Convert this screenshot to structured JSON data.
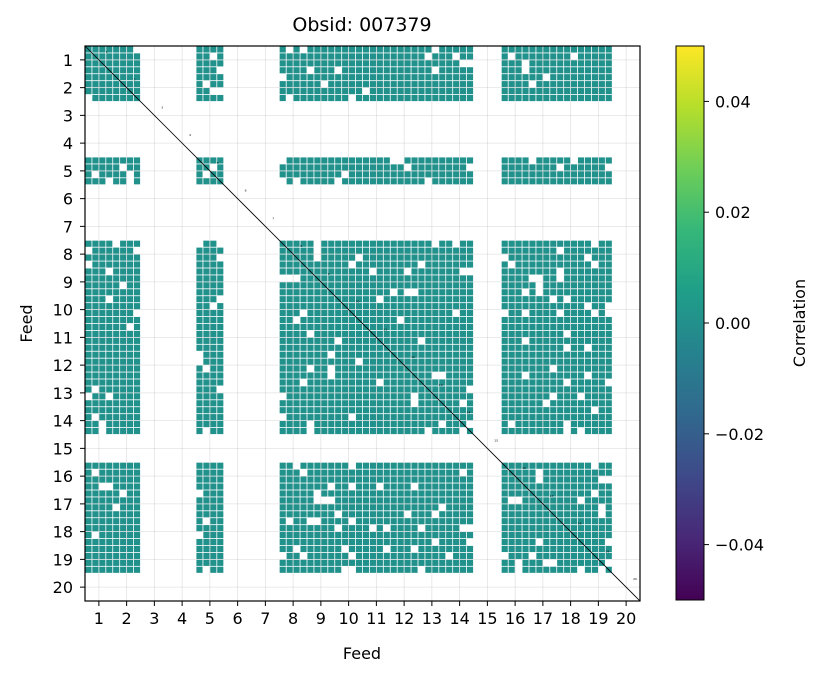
{
  "chart_data": {
    "type": "heatmap",
    "title": "Obsid: 007379",
    "xlabel": "Feed",
    "ylabel": "Feed",
    "feeds": [
      "1",
      "2",
      "3",
      "4",
      "5",
      "6",
      "7",
      "8",
      "9",
      "10",
      "11",
      "12",
      "13",
      "14",
      "15",
      "16",
      "17",
      "18",
      "19",
      "20"
    ],
    "active_feeds": [
      1,
      2,
      5,
      8,
      9,
      10,
      11,
      12,
      13,
      14,
      16,
      17,
      18,
      19
    ],
    "inactive_feeds": [
      3,
      4,
      6,
      7,
      15,
      20
    ],
    "sub_blocks_per_feed": 4,
    "fill_value": 0.0,
    "fill_color": "#21918c",
    "missing_color": "#ffffff",
    "diagonal_color": "#000000",
    "grid": true,
    "colorbar": {
      "label": "Correlation",
      "colormap": "viridis",
      "vmin": -0.05,
      "vmax": 0.05,
      "ticks": [
        "0.04",
        "0.02",
        "0.00",
        "−0.02",
        "−0.04"
      ],
      "tick_values": [
        0.04,
        0.02,
        0.0,
        -0.02,
        -0.04
      ],
      "colors": [
        "#440154",
        "#482878",
        "#3e4989",
        "#31688e",
        "#26828e",
        "#1f9e89",
        "#35b779",
        "#6ece58",
        "#b5de2b",
        "#fde725"
      ]
    }
  }
}
